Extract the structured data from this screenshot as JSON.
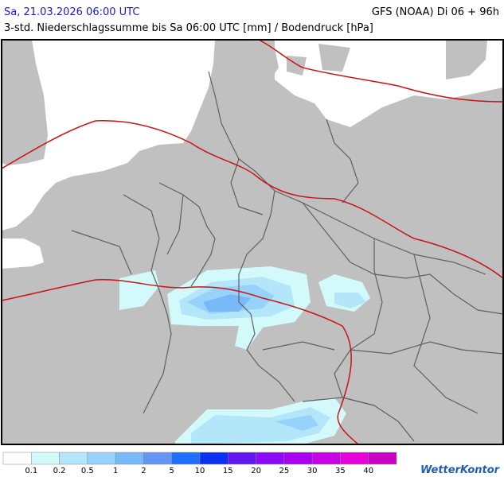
{
  "header": {
    "date": "Sa, 21.03.2026 06:00 UTC",
    "model": "GFS (NOAA) Di 06 + 96h",
    "subtitle": "3-std. Niederschlagssumme bis Sa 06:00 UTC [mm] / Bodendruck [hPa]"
  },
  "legend": {
    "levels": [
      0.1,
      0.2,
      0.5,
      1,
      2,
      5,
      10,
      15,
      20,
      25,
      30,
      35,
      40
    ],
    "colors": [
      "#ffffff",
      "#d2fafa",
      "#b4e6fa",
      "#96d2fa",
      "#78b9fa",
      "#6496f5",
      "#1e6eff",
      "#0a32f0",
      "#6414f0",
      "#8c0af5",
      "#aa00f0",
      "#c800e6",
      "#e600dc",
      "#c800c8"
    ]
  },
  "logo": "WetterKontor"
}
